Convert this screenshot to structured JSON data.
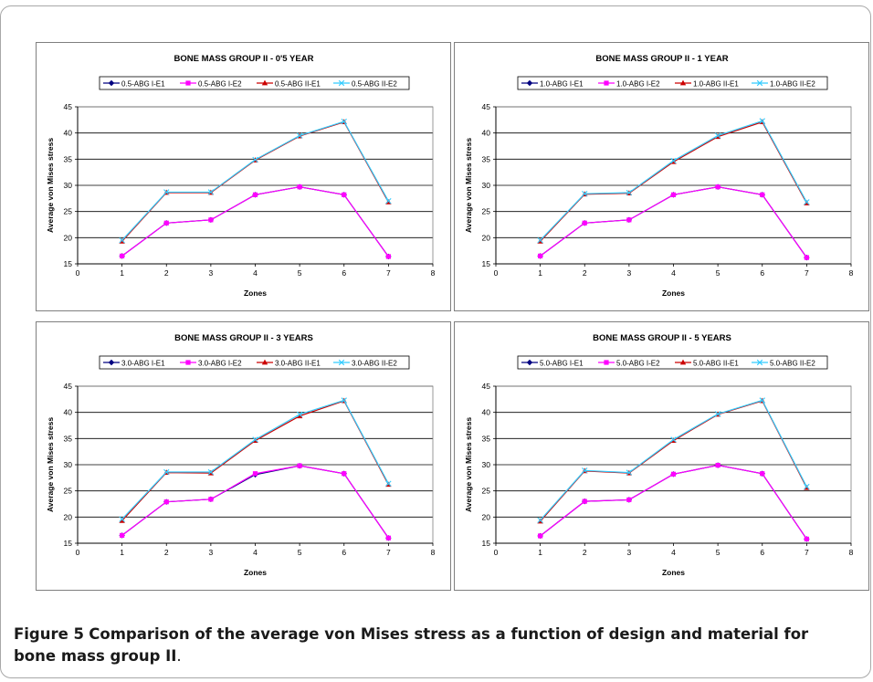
{
  "figure": {
    "caption_label": "Figure 5",
    "caption_text": "Comparison of the average von Mises stress as a function of design and material for bone mass group II",
    "caption_end": "."
  },
  "colors": {
    "I-E1": "#000080",
    "I-E2": "#ff00ff",
    "II-E1": "#cc0000",
    "II-E2": "#33ccff"
  },
  "chart_data": [
    {
      "type": "line",
      "title": "BONE MASS GROUP II - 0'5 YEAR",
      "xlabel": "Zones",
      "ylabel": "Average von Mises stress",
      "xlim": [
        0,
        8
      ],
      "ylim": [
        15,
        45
      ],
      "xticks": [
        "0",
        "1",
        "2",
        "3",
        "4",
        "5",
        "6",
        "7",
        "8"
      ],
      "yticks": [
        "15",
        "20",
        "25",
        "30",
        "35",
        "40",
        "45"
      ],
      "grid": "horizontal",
      "legend": "top",
      "x": [
        1,
        2,
        3,
        4,
        5,
        6,
        7
      ],
      "series": [
        {
          "name": "0.5-ABG I-E1",
          "values": [
            16.5,
            22.8,
            23.4,
            28.2,
            29.7,
            28.2,
            16.4
          ]
        },
        {
          "name": "0.5-ABG I-E2",
          "values": [
            16.5,
            22.8,
            23.4,
            28.2,
            29.7,
            28.2,
            16.4
          ]
        },
        {
          "name": "0.5-ABG II-E1",
          "values": [
            19.3,
            28.6,
            28.6,
            34.8,
            39.4,
            42.1,
            26.8
          ]
        },
        {
          "name": "0.5-ABG II-E2",
          "values": [
            19.5,
            28.7,
            28.7,
            34.9,
            39.5,
            42.2,
            27.0
          ]
        }
      ]
    },
    {
      "type": "line",
      "title": "BONE MASS GROUP II - 1 YEAR",
      "xlabel": "Zones",
      "ylabel": "Average von Mises stress",
      "xlim": [
        0,
        8
      ],
      "ylim": [
        15,
        45
      ],
      "xticks": [
        "0",
        "1",
        "2",
        "3",
        "4",
        "5",
        "6",
        "7",
        "8"
      ],
      "yticks": [
        "15",
        "20",
        "25",
        "30",
        "35",
        "40",
        "45"
      ],
      "grid": "horizontal",
      "legend": "top",
      "x": [
        1,
        2,
        3,
        4,
        5,
        6,
        7
      ],
      "series": [
        {
          "name": "1.0-ABG I-E1",
          "values": [
            16.5,
            22.8,
            23.4,
            28.2,
            29.7,
            28.2,
            16.2
          ]
        },
        {
          "name": "1.0-ABG I-E2",
          "values": [
            16.5,
            22.8,
            23.4,
            28.2,
            29.7,
            28.2,
            16.2
          ]
        },
        {
          "name": "1.0-ABG II-E1",
          "values": [
            19.3,
            28.3,
            28.5,
            34.5,
            39.3,
            42.1,
            26.6
          ]
        },
        {
          "name": "1.0-ABG II-E2",
          "values": [
            19.5,
            28.4,
            28.6,
            34.7,
            39.5,
            42.3,
            26.8
          ]
        }
      ]
    },
    {
      "type": "line",
      "title": "BONE MASS GROUP II - 3 YEARS",
      "xlabel": "Zones",
      "ylabel": "Average von Mises stress",
      "xlim": [
        0,
        8
      ],
      "ylim": [
        15,
        45
      ],
      "xticks": [
        "0",
        "1",
        "2",
        "3",
        "4",
        "5",
        "6",
        "7",
        "8"
      ],
      "yticks": [
        "15",
        "20",
        "25",
        "30",
        "35",
        "40",
        "45"
      ],
      "grid": "horizontal",
      "legend": "top",
      "x": [
        1,
        2,
        3,
        4,
        5,
        6,
        7
      ],
      "series": [
        {
          "name": "3.0-ABG I-E1",
          "values": [
            16.5,
            22.9,
            23.4,
            28.1,
            29.8,
            28.3,
            16.0
          ]
        },
        {
          "name": "3.0-ABG I-E2",
          "values": [
            16.5,
            22.9,
            23.4,
            28.3,
            29.8,
            28.3,
            16.0
          ]
        },
        {
          "name": "3.0-ABG II-E1",
          "values": [
            19.3,
            28.5,
            28.4,
            34.6,
            39.3,
            42.2,
            26.2
          ]
        },
        {
          "name": "3.0-ABG II-E2",
          "values": [
            19.6,
            28.6,
            28.6,
            34.8,
            39.6,
            42.3,
            26.4
          ]
        }
      ]
    },
    {
      "type": "line",
      "title": "BONE MASS GROUP II - 5 YEARS",
      "xlabel": "Zones",
      "ylabel": "Average von Mises stress",
      "xlim": [
        0,
        8
      ],
      "ylim": [
        15,
        45
      ],
      "xticks": [
        "0",
        "1",
        "2",
        "3",
        "4",
        "5",
        "6",
        "7",
        "8"
      ],
      "yticks": [
        "15",
        "20",
        "25",
        "30",
        "35",
        "40",
        "45"
      ],
      "grid": "horizontal",
      "legend": "top",
      "x": [
        1,
        2,
        3,
        4,
        5,
        6,
        7
      ],
      "series": [
        {
          "name": "5.0-ABG I-E1",
          "values": [
            16.4,
            23.0,
            23.3,
            28.2,
            29.9,
            28.3,
            15.8
          ]
        },
        {
          "name": "5.0-ABG I-E2",
          "values": [
            16.4,
            23.0,
            23.3,
            28.2,
            29.9,
            28.3,
            15.8
          ]
        },
        {
          "name": "5.0-ABG II-E1",
          "values": [
            19.2,
            28.8,
            28.4,
            34.6,
            39.6,
            42.2,
            25.6
          ]
        },
        {
          "name": "5.0-ABG II-E2",
          "values": [
            19.4,
            28.9,
            28.5,
            34.8,
            39.7,
            42.3,
            25.8
          ]
        }
      ]
    }
  ]
}
